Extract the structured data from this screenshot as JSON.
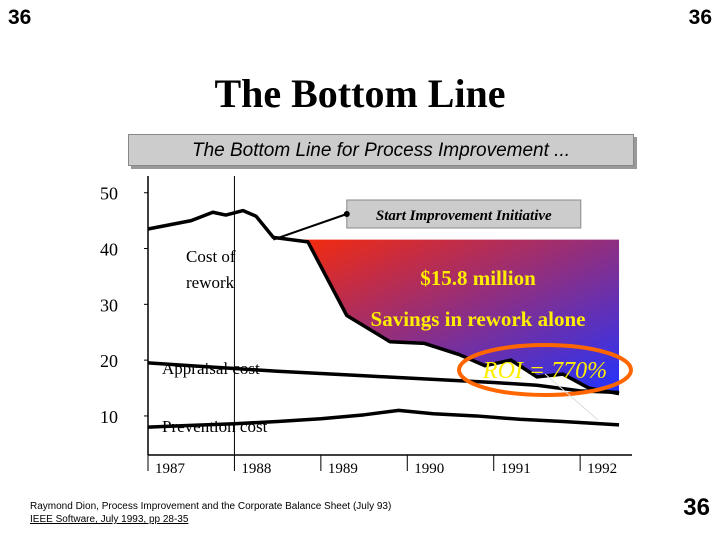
{
  "slide_number": "36",
  "title": "The Bottom Line",
  "subtitle": "The Bottom Line for Process Improvement ...",
  "citation": {
    "line1": "Raymond Dion, Process Improvement and the Corporate Balance Sheet (July 93)",
    "line2": "IEEE Software, July 1993, pp 28-35"
  },
  "chart_data": {
    "type": "line",
    "title": "",
    "xlabel": "",
    "ylabel": "",
    "x_ticks": [
      "1987",
      "1988",
      "1989",
      "1990",
      "1991",
      "1992"
    ],
    "x_range": [
      1987,
      1992.6
    ],
    "y_ticks": [
      "50",
      "40",
      "30",
      "20",
      "10"
    ],
    "y_ticks_values": [
      50,
      40,
      30,
      20,
      10
    ],
    "ylim": [
      3,
      53
    ],
    "grid": false,
    "series": [
      {
        "name": "Cost of rework",
        "x": [
          1987,
          1987.5,
          1987.75,
          1987.9,
          1988.1,
          1988.25,
          1988.45,
          1988.85,
          1989.3,
          1989.8,
          1990.2,
          1990.6,
          1990.9,
          1991.2,
          1991.5,
          1991.8,
          1992.1,
          1992.45
        ],
        "values": [
          43.5,
          45.0,
          46.5,
          46.0,
          46.8,
          45.8,
          42.0,
          41.2,
          28.0,
          23.3,
          23.0,
          21.0,
          19.0,
          20.0,
          17.0,
          17.5,
          15.0,
          14.0
        ],
        "color": "#000000"
      },
      {
        "name": "Appraisal cost",
        "x": [
          1987,
          1987.5,
          1988,
          1988.5,
          1989,
          1989.5,
          1990,
          1990.5,
          1991,
          1991.5,
          1992,
          1992.45
        ],
        "values": [
          19.5,
          19.0,
          18.5,
          18.0,
          17.6,
          17.2,
          16.8,
          16.4,
          16.0,
          15.5,
          14.5,
          14.2
        ],
        "color": "#000000"
      },
      {
        "name": "Prevention cost",
        "x": [
          1987,
          1987.5,
          1988,
          1988.5,
          1989,
          1989.5,
          1989.9,
          1990.3,
          1990.8,
          1991.3,
          1991.8,
          1992.45
        ],
        "values": [
          8.0,
          8.3,
          8.6,
          9.0,
          9.5,
          10.2,
          11.0,
          10.4,
          10.0,
          9.4,
          9.0,
          8.4
        ],
        "color": "#000000"
      }
    ],
    "savings_area": {
      "start_x": 1988.45,
      "top_value": 41.6,
      "fill_start": "#ff2a00",
      "fill_end": "#2233ff"
    },
    "annotations": {
      "start_initiative": "Start Improvement Initiative",
      "cost_of_rework": "Cost of rework",
      "amount": "$15.8 million",
      "savings": "Savings in rework alone",
      "appraisal": "Appraisal cost",
      "prevention": "Prevention cost",
      "roi": "ROI = 770%",
      "roi_ring_color": "#ff6600"
    }
  }
}
